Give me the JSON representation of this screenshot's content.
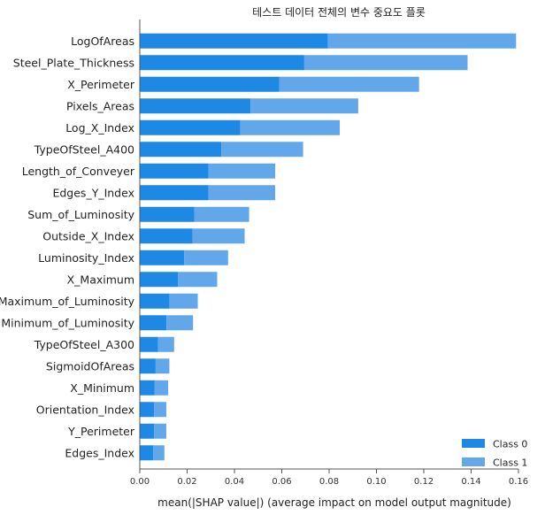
{
  "chart_data": {
    "type": "bar",
    "stacked": true,
    "orientation": "horizontal",
    "title": "테스트 데이터 전체의 변수 중요도 플롯",
    "xlabel": "mean(|SHAP value|) (average impact on model output magnitude)",
    "xlim": [
      0,
      0.16
    ],
    "xticks": [
      "0.00",
      "0.02",
      "0.04",
      "0.06",
      "0.08",
      "0.10",
      "0.12",
      "0.14",
      "0.16"
    ],
    "grid": false,
    "legend_position": "bottom-right",
    "categories": [
      "LogOfAreas",
      "Steel_Plate_Thickness",
      "X_Perimeter",
      "Pixels_Areas",
      "Log_X_Index",
      "TypeOfSteel_A400",
      "Length_of_Conveyer",
      "Edges_Y_Index",
      "Sum_of_Luminosity",
      "Outside_X_Index",
      "Luminosity_Index",
      "X_Maximum",
      "Maximum_of_Luminosity",
      "Minimum_of_Luminosity",
      "TypeOfSteel_A300",
      "SigmoidOfAreas",
      "X_Minimum",
      "Orientation_Index",
      "Y_Perimeter",
      "Edges_Index"
    ],
    "series": [
      {
        "name": "Class 0",
        "color": "#1e88e5",
        "values": [
          0.0795,
          0.0695,
          0.059,
          0.0468,
          0.0425,
          0.0345,
          0.029,
          0.029,
          0.023,
          0.0223,
          0.0188,
          0.0162,
          0.0125,
          0.0113,
          0.0077,
          0.0067,
          0.0063,
          0.006,
          0.006,
          0.0057
        ]
      },
      {
        "name": "Class 1",
        "color": "#62a7ea",
        "values": [
          0.0795,
          0.069,
          0.059,
          0.0455,
          0.042,
          0.0345,
          0.0282,
          0.0282,
          0.0232,
          0.022,
          0.0185,
          0.0165,
          0.012,
          0.0112,
          0.0068,
          0.0058,
          0.0057,
          0.0052,
          0.0052,
          0.0047
        ]
      }
    ]
  }
}
